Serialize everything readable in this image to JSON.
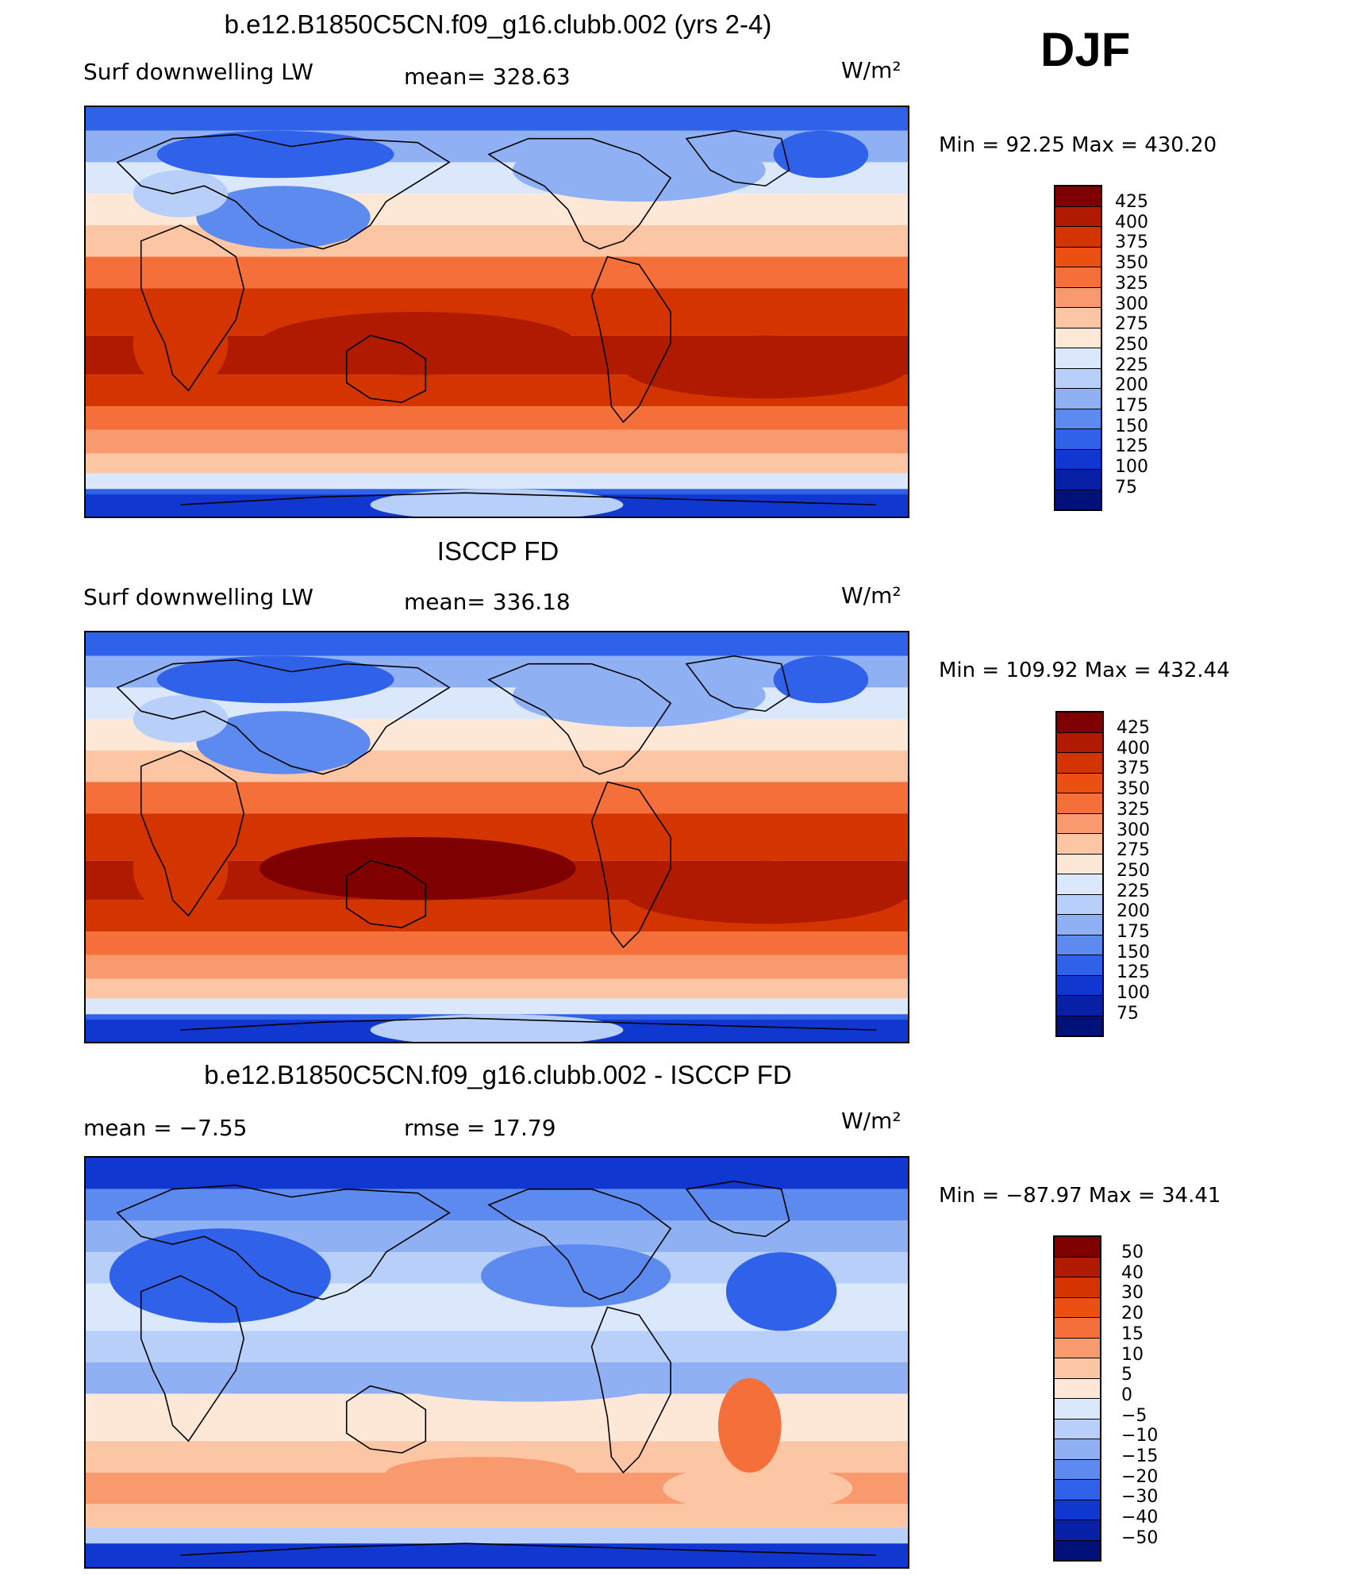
{
  "season_label": "DJF",
  "units": "W/m²",
  "panels": [
    {
      "title": "b.e12.B1850C5CN.f09_g16.clubb.002 (yrs 2-4)",
      "left_label": "Surf downwelling LW",
      "stat_label": "mean=  328.63",
      "minmax_label": "Min =   92.25 Max = 430.20",
      "map_style": "model"
    },
    {
      "title": "ISCCP FD",
      "left_label": "Surf downwelling LW",
      "stat_label": "mean=  336.18",
      "minmax_label": "Min = 109.92 Max = 432.44",
      "map_style": "obs"
    },
    {
      "title": "b.e12.B1850C5CN.f09_g16.clubb.002 - ISCCP FD",
      "left_label": "mean =    −7.55",
      "stat_label": "rmse =    17.79",
      "minmax_label": "Min = −87.97 Max =   34.41",
      "map_style": "diff"
    }
  ],
  "colorbars": {
    "absolute": {
      "labels": [
        "425",
        "400",
        "375",
        "350",
        "325",
        "300",
        "275",
        "250",
        "225",
        "200",
        "175",
        "150",
        "125",
        "100",
        "75"
      ],
      "colors": [
        "#7f0000",
        "#b01a00",
        "#d43500",
        "#ec4f12",
        "#f56f3a",
        "#f99a6e",
        "#fcc5a3",
        "#fde7d6",
        "#dbe8fb",
        "#b7cff9",
        "#8fb1f4",
        "#5d8aef",
        "#2f62e8",
        "#1037cf",
        "#0820a6",
        "#00127a"
      ]
    },
    "difference": {
      "labels": [
        "50",
        "40",
        "30",
        "20",
        "15",
        "10",
        "5",
        "0",
        "−5",
        "−10",
        "−15",
        "−20",
        "−30",
        "−40",
        "−50"
      ],
      "colors": [
        "#7f0000",
        "#b01a00",
        "#d43500",
        "#ec4f12",
        "#f56f3a",
        "#f99a6e",
        "#fcc5a3",
        "#fde7d6",
        "#dbe8fb",
        "#b7cff9",
        "#8fb1f4",
        "#5d8aef",
        "#2f62e8",
        "#1037cf",
        "#0820a6",
        "#00127a"
      ]
    }
  }
}
